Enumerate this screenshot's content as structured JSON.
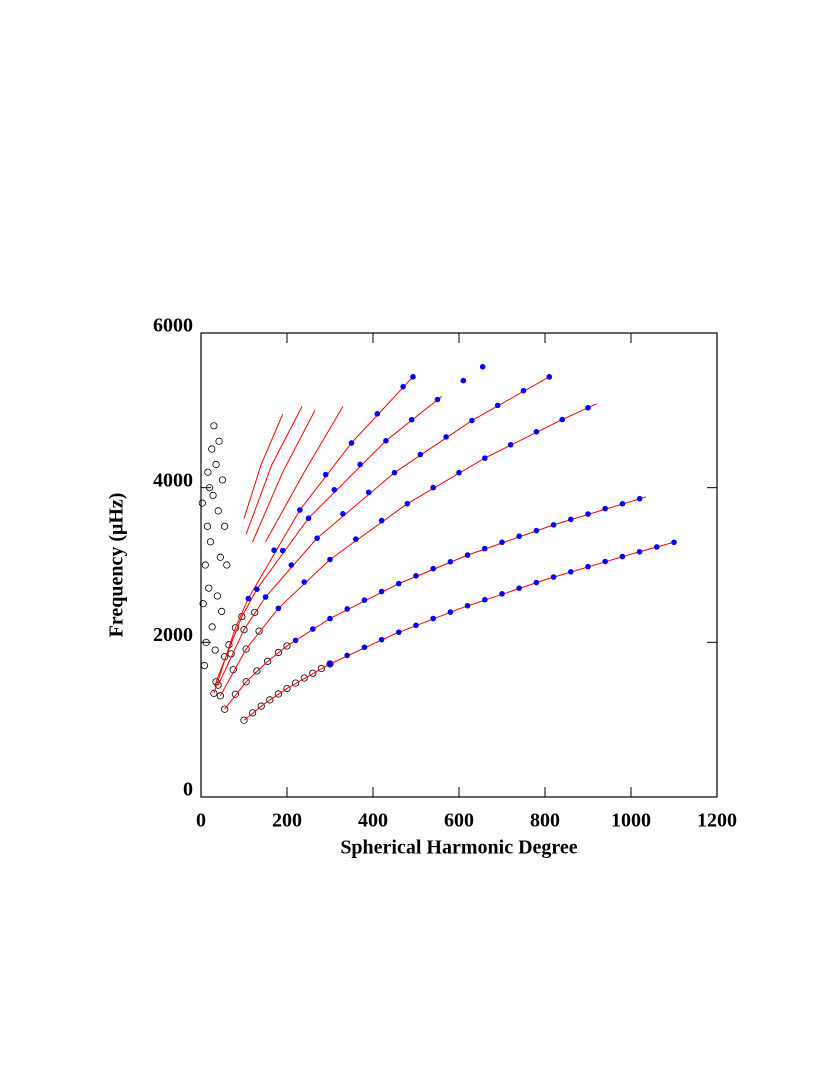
{
  "chart_data": {
    "type": "scatter",
    "xlabel": "Spherical Harmonic Degree",
    "ylabel": "Frequency (μHz)",
    "xlim": [
      0,
      1200
    ],
    "xticks": [
      0,
      200,
      400,
      600,
      800,
      1000,
      1200
    ],
    "ylim": [
      0,
      6000
    ],
    "yticks": [
      0,
      2000,
      4000,
      6000
    ],
    "series": [
      {
        "style": "open",
        "color": "#000000",
        "x": [
          100,
          120,
          140,
          160,
          180,
          200,
          220,
          240,
          260,
          280,
          300,
          55,
          80,
          105,
          130,
          155,
          180,
          200,
          45,
          75,
          105,
          135,
          40,
          70,
          100,
          125,
          35,
          65,
          95,
          30,
          55,
          80,
          5,
          10,
          15,
          20,
          25,
          30,
          12,
          18,
          22,
          28,
          35,
          40,
          45,
          8,
          3,
          50,
          38,
          26,
          16,
          33,
          42,
          55,
          60,
          48
        ],
        "y": [
          993,
          1088,
          1175,
          1256,
          1332,
          1404,
          1473,
          1538,
          1601,
          1662,
          1720,
          1135,
          1329,
          1490,
          1630,
          1754,
          1869,
          1953,
          1308,
          1646,
          1914,
          2145,
          1446,
          1850,
          2164,
          2388,
          1489,
          1967,
          2333,
          1340,
          1814,
          2188,
          2500,
          3000,
          3500,
          4000,
          4500,
          4800,
          2000,
          2700,
          3300,
          3900,
          4300,
          3700,
          3100,
          1700,
          3800,
          4100,
          2600,
          2200,
          4200,
          1900,
          4600,
          3500,
          3000,
          2400
        ]
      },
      {
        "style": "line",
        "color": "#ff0000",
        "x": [
          100,
          150,
          200,
          300,
          450,
          600,
          800,
          1000,
          1100
        ],
        "y": [
          993,
          1216,
          1404,
          1720,
          2107,
          2432,
          2809,
          3140,
          3294
        ]
      },
      {
        "style": "line",
        "color": "#ff0000",
        "x": [
          55,
          105,
          155,
          200,
          300,
          460,
          620,
          820,
          1035
        ],
        "y": [
          1135,
          1490,
          1754,
          1953,
          2307,
          2759,
          3128,
          3519,
          3880
        ]
      },
      {
        "style": "line",
        "color": "#ff0000",
        "x": [
          45,
          105,
          180,
          300,
          480,
          660,
          840,
          920
        ],
        "y": [
          1308,
          1914,
          2440,
          3071,
          3793,
          4382,
          4881,
          5084
        ]
      },
      {
        "style": "line",
        "color": "#ff0000",
        "x": [
          40,
          100,
          150,
          270,
          450,
          630,
          810
        ],
        "y": [
          1446,
          2164,
          2586,
          3347,
          4194,
          4868,
          5433
        ]
      },
      {
        "style": "line",
        "color": "#ff0000",
        "x": [
          35,
          95,
          130,
          250,
          430,
          560
        ],
        "y": [
          1489,
          2333,
          2687,
          3605,
          4606,
          5180
        ]
      },
      {
        "style": "line",
        "color": "#ff0000",
        "x": [
          30,
          80,
          110,
          230,
          350,
          493
        ],
        "y": [
          1340,
          2188,
          2566,
          3711,
          4578,
          5433
        ]
      },
      {
        "style": "line",
        "color": "#ff0000",
        "x": [
          150,
          240,
          330
        ],
        "y": [
          3300,
          4200,
          5050
        ]
      },
      {
        "style": "line",
        "color": "#ff0000",
        "x": [
          120,
          190,
          265
        ],
        "y": [
          3300,
          4200,
          5000
        ]
      },
      {
        "style": "line",
        "color": "#ff0000",
        "x": [
          105,
          165,
          235
        ],
        "y": [
          3400,
          4300,
          5050
        ]
      },
      {
        "style": "line",
        "color": "#ff0000",
        "x": [
          100,
          140,
          190
        ],
        "y": [
          3600,
          4300,
          4950
        ]
      },
      {
        "style": "filled",
        "color": "#0000ff",
        "x": [
          300,
          340,
          380,
          420,
          460,
          500,
          540,
          580,
          620,
          660,
          700,
          740,
          780,
          820,
          860,
          900,
          940,
          980,
          1020,
          1060,
          1100
        ],
        "y": [
          1720,
          1831,
          1936,
          2035,
          2130,
          2220,
          2308,
          2391,
          2473,
          2551,
          2627,
          2701,
          2773,
          2844,
          2912,
          2979,
          3045,
          3109,
          3171,
          3233,
          3294
        ]
      },
      {
        "style": "filled",
        "color": "#0000ff",
        "x": [
          220,
          260,
          300,
          340,
          380,
          420,
          460,
          500,
          540,
          580,
          620,
          660,
          700,
          740,
          780,
          820,
          860,
          900,
          940,
          980,
          1020
        ],
        "y": [
          2025,
          2172,
          2307,
          2432,
          2546,
          2657,
          2759,
          2860,
          2953,
          3042,
          3128,
          3212,
          3294,
          3372,
          3445,
          3519,
          3589,
          3659,
          3729,
          3791,
          3857
        ]
      },
      {
        "style": "filled",
        "color": "#0000ff",
        "x": [
          180,
          240,
          300,
          360,
          420,
          480,
          540,
          600,
          660,
          720,
          780,
          840,
          900
        ],
        "y": [
          2440,
          2780,
          3071,
          3335,
          3574,
          3793,
          4001,
          4194,
          4382,
          4555,
          4723,
          4881,
          5033
        ]
      },
      {
        "style": "filled",
        "color": "#0000ff",
        "x": [
          150,
          210,
          270,
          330,
          390,
          450,
          510,
          570,
          630,
          690,
          750,
          810
        ],
        "y": [
          2586,
          2999,
          3347,
          3662,
          3939,
          4194,
          4428,
          4656,
          4868,
          5064,
          5254,
          5433
        ]
      },
      {
        "style": "filled",
        "color": "#0000ff",
        "x": [
          130,
          190,
          250,
          310,
          370,
          430,
          490,
          550,
          610,
          655
        ],
        "y": [
          2687,
          3187,
          3605,
          3972,
          4300,
          4606,
          4879,
          5140,
          5385,
          5563
        ]
      },
      {
        "style": "filled",
        "color": "#0000ff",
        "x": [
          110,
          170,
          230,
          290,
          350,
          410,
          470,
          493
        ],
        "y": [
          2566,
          3191,
          3711,
          4169,
          4578,
          4955,
          5306,
          5433
        ]
      }
    ]
  }
}
